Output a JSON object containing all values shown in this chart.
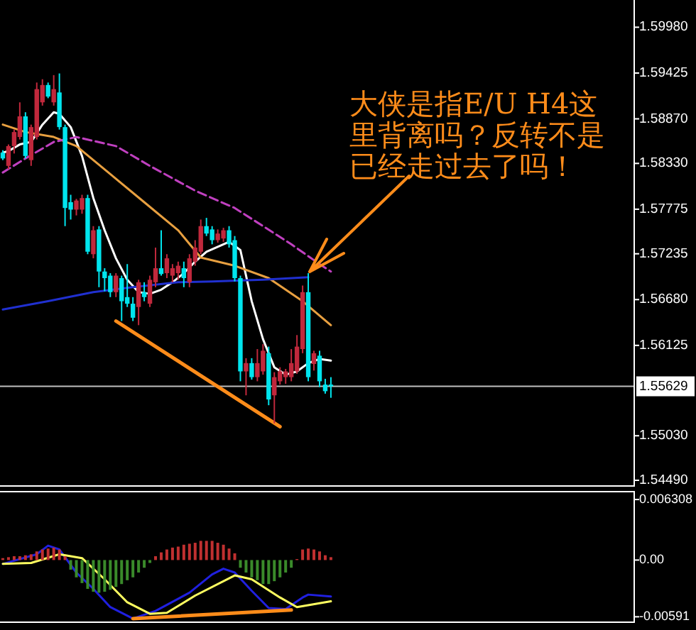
{
  "chart_data": [
    {
      "type": "candlestick",
      "categories": [
        null,
        null,
        null,
        null,
        null,
        null,
        null,
        null,
        null,
        null,
        null,
        null,
        null,
        null,
        null,
        null,
        null,
        null,
        null,
        null,
        null,
        null,
        null,
        null,
        null,
        null,
        null,
        null,
        null,
        null,
        null,
        null,
        null,
        null,
        null,
        null,
        null,
        null,
        null,
        null,
        null,
        null,
        null,
        null,
        null,
        null,
        null,
        null,
        null,
        null,
        null,
        null,
        null,
        null,
        null,
        null,
        null,
        null,
        null,
        null,
        null,
        null,
        null,
        null,
        null,
        null,
        null,
        null,
        null,
        null,
        null,
        null,
        null,
        null,
        null,
        null,
        null,
        null,
        null,
        null,
        null,
        null,
        null,
        null,
        null,
        null,
        null,
        null,
        null,
        null,
        null,
        null,
        null,
        null,
        null,
        null,
        null,
        null,
        null,
        null,
        null,
        null,
        null,
        null,
        null,
        null,
        null,
        null,
        null,
        null,
        null,
        null
      ],
      "ohlc": [
        [
          1.5846,
          1.5849,
          1.5837,
          1.5839
        ],
        [
          1.583,
          1.5856,
          1.5826,
          1.5854
        ],
        [
          1.5854,
          1.5874,
          1.5845,
          1.5871
        ],
        [
          1.5865,
          1.5907,
          1.5862,
          1.589
        ],
        [
          1.589,
          1.5895,
          1.5839,
          1.5842
        ],
        [
          1.5837,
          1.588,
          1.583,
          1.5877
        ],
        [
          1.5865,
          1.5931,
          1.5862,
          1.5923
        ],
        [
          1.5907,
          1.5935,
          1.5903,
          1.5928
        ],
        [
          1.5928,
          1.5931,
          1.5912,
          1.5914
        ],
        [
          1.5907,
          1.594,
          1.5903,
          1.5923
        ],
        [
          1.5919,
          1.5942,
          1.5874,
          1.5877
        ],
        [
          1.5877,
          1.588,
          1.5757,
          1.5779
        ],
        [
          1.5786,
          1.5795,
          1.5765,
          1.5777
        ],
        [
          1.5777,
          1.579,
          1.577,
          1.5788
        ],
        [
          1.5777,
          1.5795,
          1.5772,
          1.5791
        ],
        [
          1.5791,
          1.5795,
          1.5723,
          1.5726
        ],
        [
          1.5723,
          1.5757,
          1.5718,
          1.5752
        ],
        [
          1.5753,
          1.5757,
          1.5683,
          1.5702
        ],
        [
          1.5702,
          1.5706,
          1.5678,
          1.5694
        ],
        [
          1.5697,
          1.57,
          1.5671,
          1.5677
        ],
        [
          1.5677,
          1.57,
          1.5671,
          1.5697
        ],
        [
          1.5694,
          1.5697,
          1.5642,
          1.5666
        ],
        [
          1.5671,
          1.5711,
          1.5659,
          1.5663
        ],
        [
          1.5663,
          1.5671,
          1.5642,
          1.5646
        ],
        [
          1.5659,
          1.5692,
          1.5637,
          1.5689
        ],
        [
          1.5677,
          1.5689,
          1.5666,
          1.5671
        ],
        [
          1.5663,
          1.5697,
          1.5659,
          1.5692
        ],
        [
          1.5689,
          1.5731,
          1.5683,
          1.5706
        ],
        [
          1.5706,
          1.5752,
          1.5697,
          1.5699
        ],
        [
          1.57,
          1.5723,
          1.5694,
          1.5718
        ],
        [
          1.5697,
          1.5711,
          1.5689,
          1.5706
        ],
        [
          1.57,
          1.5714,
          1.5692,
          1.5709
        ],
        [
          1.5706,
          1.5714,
          1.5683,
          1.5694
        ],
        [
          1.5689,
          1.5723,
          1.5683,
          1.5718
        ],
        [
          1.5714,
          1.574,
          1.5709,
          1.5731
        ],
        [
          1.5726,
          1.5765,
          1.5723,
          1.5757
        ],
        [
          1.5757,
          1.5767,
          1.5745,
          1.5748
        ],
        [
          1.5753,
          1.5757,
          1.5735,
          1.574
        ],
        [
          1.574,
          1.5753,
          1.5737,
          1.5748
        ],
        [
          1.5742,
          1.5755,
          1.5738,
          1.5752
        ],
        [
          1.5752,
          1.5757,
          1.5731,
          1.5735
        ],
        [
          1.574,
          1.5745,
          1.569,
          1.5694
        ],
        [
          1.5694,
          1.5697,
          1.5569,
          1.5581
        ],
        [
          1.5581,
          1.5597,
          1.5552,
          1.5591
        ],
        [
          1.5591,
          1.5597,
          1.5571,
          1.5574
        ],
        [
          1.5574,
          1.5608,
          1.5569,
          1.5591
        ],
        [
          1.5581,
          1.5614,
          1.5577,
          1.5606
        ],
        [
          1.5603,
          1.5611,
          1.554,
          1.5547
        ],
        [
          1.5552,
          1.558,
          1.5518,
          1.5574
        ],
        [
          1.5569,
          1.5586,
          1.5565,
          1.5581
        ],
        [
          1.5574,
          1.5584,
          1.5566,
          1.5581
        ],
        [
          1.5574,
          1.5608,
          1.5569,
          1.5591
        ],
        [
          1.5581,
          1.5625,
          1.5578,
          1.5611
        ],
        [
          1.5608,
          1.5685,
          1.5603,
          1.5677
        ],
        [
          1.5677,
          1.57,
          1.5569,
          1.5574
        ],
        [
          1.559,
          1.5606,
          1.5582,
          1.5603
        ],
        [
          1.56,
          1.5606,
          1.5562,
          1.5569
        ],
        [
          1.5565,
          1.5572,
          1.5554,
          1.5557
        ],
        [
          1.5565,
          1.5574,
          1.5549,
          1.5563
        ],
        null,
        null,
        null,
        null,
        null,
        null,
        null,
        null,
        null,
        null,
        null,
        null,
        null,
        null,
        null,
        null,
        null,
        null,
        null,
        null,
        null,
        null,
        null,
        null,
        null,
        null,
        null,
        null,
        null,
        null,
        null,
        null,
        null,
        null,
        null,
        null,
        null,
        null,
        null,
        null,
        null,
        null,
        null,
        null,
        null,
        null,
        null,
        null,
        null,
        null,
        null,
        null,
        null
      ],
      "colors": [
        "#00e5ee",
        "#c0283c",
        "#c0283c",
        "#c0283c",
        "#00e5ee",
        "#c0283c",
        "#c0283c",
        "#c0283c",
        "#00e5ee",
        "#c0283c",
        "#00e5ee",
        "#00e5ee",
        "#00e5ee",
        "#c0283c",
        "#c0283c",
        "#00e5ee",
        "#c0283c",
        "#00e5ee",
        "#00e5ee",
        "#00e5ee",
        "#c0283c",
        "#00e5ee",
        "#00e5ee",
        "#00e5ee",
        "#c0283c",
        "#00e5ee",
        "#c0283c",
        "#c0283c",
        "#00e5ee",
        "#c0283c",
        "#c0283c",
        "#c0283c",
        "#00e5ee",
        "#c0283c",
        "#c0283c",
        "#c0283c",
        "#00e5ee",
        "#00e5ee",
        "#c0283c",
        "#c0283c",
        "#00e5ee",
        "#00e5ee",
        "#00e5ee",
        "#c0283c",
        "#00e5ee",
        "#c0283c",
        "#c0283c",
        "#00e5ee",
        "#c0283c",
        "#c0283c",
        "#c0283c",
        "#c0283c",
        "#c0283c",
        "#c0283c",
        "#00e5ee",
        "#c0283c",
        "#00e5ee",
        "#00e5ee",
        "#00e5ee",
        null,
        null,
        null,
        null,
        null,
        null,
        null,
        null,
        null,
        null,
        null,
        null,
        null,
        null,
        null,
        null,
        null,
        null,
        null,
        null,
        null,
        null,
        null,
        null,
        null,
        null,
        null,
        null,
        null,
        null,
        null,
        null,
        null,
        null,
        null,
        null,
        null,
        null,
        null,
        null,
        null,
        null,
        null,
        null,
        null,
        null,
        null,
        null,
        null,
        null,
        null,
        null,
        null
      ],
      "series": [
        {
          "type": "line",
          "color": "#ffffff",
          "values": [
            1.5846,
            1.5848,
            null,
            1.5856,
            null,
            1.5859,
            null,
            1.588,
            null,
            1.5895,
            1.5893,
            null,
            1.5877,
            null,
            1.5842,
            null,
            1.5791,
            null,
            1.5752,
            null,
            1.5718,
            null,
            1.5692,
            null,
            1.5677,
            null,
            1.5675,
            null,
            1.568,
            null,
            1.5689,
            null,
            1.57,
            null,
            1.5714,
            null,
            1.5726,
            null,
            null,
            null,
            1.5738,
            null,
            1.5728,
            null,
            1.5666,
            null,
            1.562,
            null,
            1.5586,
            null,
            1.5577,
            null,
            1.5581,
            null,
            1.5591,
            null,
            1.5596,
            null,
            1.5594,
            null,
            null,
            null,
            null,
            null,
            null,
            null,
            null,
            null,
            null,
            null,
            null,
            null,
            null,
            null,
            null,
            null,
            null,
            null,
            null,
            null,
            null,
            null,
            null,
            null,
            null,
            null,
            null,
            null,
            null,
            null,
            null,
            null,
            null,
            null,
            null,
            null,
            null,
            null,
            null,
            null,
            null,
            null,
            null,
            null,
            null,
            null,
            null,
            null,
            null,
            null,
            null,
            null
          ]
        },
        {
          "type": "line",
          "color": "#e8a040",
          "values": [
            1.588,
            null,
            null,
            null,
            1.5871,
            null,
            null,
            null,
            null,
            1.5865,
            null,
            null,
            null,
            1.5854,
            null,
            null,
            null,
            null,
            null,
            1.582,
            null,
            null,
            null,
            null,
            null,
            1.5786,
            null,
            null,
            null,
            null,
            null,
            1.5752,
            null,
            null,
            null,
            1.5719,
            null,
            null,
            null,
            null,
            null,
            1.5709,
            null,
            null,
            null,
            null,
            null,
            1.5694,
            null,
            null,
            null,
            null,
            null,
            1.5666,
            null,
            null,
            null,
            null,
            1.5637,
            null,
            null,
            null,
            null,
            null,
            null,
            null,
            null,
            null,
            null,
            null,
            null,
            null,
            null,
            null,
            null,
            null,
            null,
            null,
            null,
            null,
            null,
            null,
            null,
            null,
            null,
            null,
            null,
            null,
            null,
            null,
            null,
            null,
            null,
            null,
            null,
            null,
            null,
            null,
            null,
            null,
            null,
            null,
            null,
            null,
            null,
            null,
            null,
            null,
            null,
            null,
            null,
            null
          ]
        },
        {
          "type": "line",
          "color": "#c040c0",
          "line_style": "dashed",
          "values": [
            1.5822,
            null,
            null,
            null,
            1.5839,
            null,
            null,
            null,
            null,
            1.5859,
            null,
            null,
            null,
            1.5865,
            null,
            null,
            null,
            null,
            null,
            null,
            1.5854,
            null,
            null,
            null,
            null,
            null,
            1.583,
            null,
            null,
            null,
            null,
            null,
            null,
            null,
            1.58,
            null,
            null,
            null,
            null,
            null,
            null,
            1.5779,
            null,
            null,
            null,
            null,
            1.5757,
            null,
            null,
            null,
            null,
            1.5735,
            null,
            null,
            null,
            null,
            1.5711,
            null,
            1.5702,
            null,
            null,
            null,
            null,
            null,
            null,
            null,
            null,
            null,
            null,
            null,
            null,
            null,
            null,
            null,
            null,
            null,
            null,
            null,
            null,
            null,
            null,
            null,
            null,
            null,
            null,
            null,
            null,
            null,
            null,
            null,
            null,
            null,
            null,
            null,
            null,
            null,
            null,
            null,
            null,
            null,
            null,
            null,
            null,
            null,
            null,
            null,
            null,
            null,
            null,
            null,
            null,
            null
          ]
        },
        {
          "type": "line",
          "color": "#2030d0",
          "values": [
            1.5656,
            null,
            null,
            null,
            null,
            null,
            null,
            null,
            1.5666,
            null,
            null,
            null,
            null,
            null,
            null,
            null,
            1.5677,
            null,
            null,
            null,
            null,
            null,
            null,
            1.5683,
            null,
            null,
            null,
            null,
            null,
            null,
            null,
            1.5689,
            null,
            null,
            null,
            null,
            null,
            1.569,
            null,
            null,
            null,
            null,
            null,
            null,
            null,
            null,
            1.5692,
            null,
            null,
            null,
            null,
            null,
            null,
            null,
            1.5695,
            null,
            null,
            null,
            null,
            null,
            null,
            null,
            null,
            null,
            null,
            null,
            null,
            null,
            null,
            null,
            null,
            null,
            null,
            null,
            null,
            null,
            null,
            null,
            null,
            null,
            null,
            null,
            null,
            null,
            null,
            null,
            null,
            null,
            null,
            null,
            null,
            null,
            null,
            null,
            null,
            null,
            null,
            null,
            null,
            null,
            null,
            null,
            null,
            null,
            null,
            null,
            null,
            null,
            null,
            null,
            null,
            null
          ]
        },
        {
          "type": "line",
          "color": "#ff8c1a",
          "values": [
            null,
            null,
            null,
            null,
            null,
            null,
            null,
            null,
            null,
            null,
            null,
            null,
            null,
            null,
            null,
            null,
            null,
            null,
            null,
            null,
            1.5642,
            null,
            null,
            null,
            null,
            null,
            null,
            null,
            null,
            null,
            null,
            null,
            null,
            null,
            null,
            null,
            null,
            null,
            null,
            null,
            null,
            null,
            null,
            null,
            null,
            null,
            null,
            null,
            null,
            1.5514,
            null,
            null,
            null,
            null,
            null,
            null,
            null,
            null,
            null,
            null,
            null,
            null,
            null,
            null,
            null,
            null,
            null,
            null,
            null,
            null,
            null,
            null,
            null,
            null,
            null,
            null,
            null,
            null,
            null,
            null,
            null,
            null,
            null,
            null,
            null,
            null,
            null,
            null,
            null,
            null,
            null,
            null,
            null,
            null,
            null,
            null,
            null,
            null,
            null,
            null,
            null,
            null,
            null,
            null,
            null,
            null,
            null,
            null,
            null,
            null,
            null,
            null
          ]
        }
      ],
      "ylim": [
        1.5443,
        1.6031
      ],
      "yticks": [
        {
          "value": 1.5998,
          "label": "1.59980"
        },
        1.59425,
        {
          "value": 1.5887,
          "label": "1.58870"
        },
        {
          "value": 1.5833,
          "label": "1.58330"
        },
        1.57775,
        1.57235,
        {
          "value": 1.5668,
          "label": "1.56680"
        },
        1.56125,
        {
          "value": 1.5503,
          "label": "1.55030"
        },
        {
          "value": 1.5449,
          "label": "1.54490"
        }
      ],
      "ref_lines": [
        {
          "axis": "y",
          "value": 1.55629,
          "label": "1.55629",
          "color": "#c0c0c0"
        }
      ],
      "annotations": [
        "大侠是指E/U H4这里背离吗？反转不是已经走过去了吗！"
      ]
    },
    {
      "type": "bar",
      "categories": [
        null,
        null,
        null,
        null,
        null,
        null,
        null,
        null,
        null,
        null,
        null,
        null,
        null,
        null,
        null,
        null,
        null,
        null,
        null,
        null,
        null,
        null,
        null,
        null,
        null,
        null,
        null,
        null,
        null,
        null,
        null,
        null,
        null,
        null,
        null,
        null,
        null,
        null,
        null,
        null,
        null,
        null,
        null,
        null,
        null,
        null,
        null,
        null,
        null,
        null,
        null,
        null,
        null,
        null,
        null,
        null,
        null,
        null,
        null,
        null,
        null,
        null,
        null,
        null,
        null,
        null,
        null,
        null,
        null,
        null,
        null,
        null,
        null,
        null,
        null,
        null,
        null,
        null,
        null,
        null,
        null,
        null,
        null,
        null,
        null,
        null,
        null,
        null,
        null,
        null,
        null,
        null,
        null,
        null,
        null,
        null,
        null,
        null,
        null,
        null,
        null,
        null,
        null,
        null,
        null,
        null,
        null,
        null,
        null,
        null,
        null,
        null
      ],
      "series": [
        {
          "values": [
            0.0002,
            0.0003,
            0.0004,
            0.0004,
            0.0005,
            0.0006,
            0.0009,
            0.0011,
            0.0012,
            0.0013,
            0.0011,
            0.0004,
            -0.001,
            -0.0018,
            -0.0024,
            -0.003,
            -0.0033,
            -0.0034,
            -0.0033,
            -0.0031,
            -0.0028,
            -0.0025,
            -0.0021,
            -0.0018,
            -0.0013,
            -0.0008,
            -0.0003,
            0.0004,
            0.0008,
            0.0011,
            0.0013,
            0.0014,
            0.0016,
            0.0017,
            0.0018,
            0.002,
            0.002,
            0.002,
            0.0018,
            0.0016,
            0.0012,
            0.0007,
            -0.0008,
            -0.0013,
            -0.0018,
            -0.0021,
            -0.0025,
            -0.0025,
            -0.0022,
            -0.0018,
            -0.0013,
            -0.0008,
            0.0001,
            0.0011,
            0.0012,
            0.0011,
            0.0009,
            0.0005,
            0.0003,
            null,
            null,
            null,
            null,
            null,
            null,
            null,
            null,
            null,
            null,
            null,
            null,
            null,
            null,
            null,
            null,
            null,
            null,
            null,
            null,
            null,
            null,
            null,
            null,
            null,
            null,
            null,
            null,
            null,
            null,
            null,
            null,
            null,
            null,
            null,
            null,
            null,
            null,
            null,
            null,
            null,
            null,
            null,
            null,
            null,
            null,
            null,
            null,
            null,
            null,
            null,
            null,
            null
          ],
          "colors": [
            "#c03030",
            "#c03030",
            "#c03030",
            "#c03030",
            "#c03030",
            "#c03030",
            "#c03030",
            "#c03030",
            "#c03030",
            "#c03030",
            "#c03030",
            "#c03030",
            "#3a8a2a",
            "#3a8a2a",
            "#3a8a2a",
            "#3a8a2a",
            "#3a8a2a",
            "#3a8a2a",
            "#3a8a2a",
            "#3a8a2a",
            "#3a8a2a",
            "#3a8a2a",
            "#3a8a2a",
            "#3a8a2a",
            "#3a8a2a",
            "#3a8a2a",
            "#3a8a2a",
            "#c03030",
            "#c03030",
            "#c03030",
            "#c03030",
            "#c03030",
            "#c03030",
            "#c03030",
            "#c03030",
            "#c03030",
            "#c03030",
            "#c03030",
            "#c03030",
            "#c03030",
            "#c03030",
            "#c03030",
            "#3a8a2a",
            "#3a8a2a",
            "#3a8a2a",
            "#3a8a2a",
            "#3a8a2a",
            "#3a8a2a",
            "#3a8a2a",
            "#3a8a2a",
            "#3a8a2a",
            "#3a8a2a",
            "#c03030",
            "#c03030",
            "#c03030",
            "#c03030",
            "#c03030",
            "#c03030",
            "#c03030",
            null,
            null,
            null,
            null,
            null,
            null,
            null,
            null,
            null,
            null,
            null,
            null,
            null,
            null,
            null,
            null,
            null,
            null,
            null,
            null,
            null,
            null,
            null,
            null,
            null,
            null,
            null,
            null,
            null,
            null,
            null,
            null,
            null,
            null,
            null,
            null,
            null,
            null,
            null,
            null,
            null,
            null,
            null,
            null,
            null,
            null,
            null,
            null,
            null,
            null,
            null,
            null,
            null
          ]
        },
        {
          "type": "line",
          "color": "#2020e0",
          "values": [
            -0.0004,
            null,
            null,
            null,
            null,
            null,
            0.0006,
            null,
            0.0015,
            null,
            0.0011,
            null,
            null,
            -0.0013,
            null,
            null,
            -0.003,
            null,
            null,
            -0.0049,
            null,
            null,
            null,
            -0.0061,
            null,
            null,
            null,
            -0.0053,
            null,
            null,
            null,
            null,
            null,
            -0.0034,
            null,
            null,
            null,
            -0.0015,
            null,
            -0.0009,
            null,
            -0.0013,
            null,
            null,
            -0.0032,
            null,
            null,
            -0.005,
            null,
            null,
            -0.0051,
            null,
            null,
            -0.0039,
            -0.0036,
            null,
            null,
            null,
            -0.0038,
            null,
            null,
            null,
            null,
            null,
            null,
            null,
            null,
            null,
            null,
            null,
            null,
            null,
            null,
            null,
            null,
            null,
            null,
            null,
            null,
            null,
            null,
            null,
            null,
            null,
            null,
            null,
            null,
            null,
            null,
            null,
            null,
            null,
            null,
            null,
            null,
            null,
            null,
            null,
            null,
            null,
            null,
            null,
            null,
            null,
            null,
            null,
            null,
            null,
            null,
            null,
            null,
            null
          ]
        },
        {
          "type": "line",
          "color": "#ffff60",
          "values": [
            -0.0004,
            null,
            null,
            null,
            null,
            -0.0003,
            null,
            null,
            null,
            null,
            0.0006,
            null,
            null,
            null,
            0.0002,
            null,
            null,
            null,
            -0.002,
            null,
            null,
            null,
            -0.0044,
            null,
            null,
            null,
            -0.0056,
            null,
            null,
            -0.0055,
            null,
            null,
            null,
            null,
            -0.0037,
            null,
            null,
            null,
            null,
            null,
            null,
            -0.0016,
            null,
            null,
            -0.002,
            null,
            null,
            null,
            null,
            -0.0039,
            null,
            null,
            -0.0049,
            null,
            -0.0047,
            null,
            null,
            null,
            -0.0043,
            null,
            null,
            null,
            null,
            null,
            null,
            null,
            null,
            null,
            null,
            null,
            null,
            null,
            null,
            null,
            null,
            null,
            null,
            null,
            null,
            null,
            null,
            null,
            null,
            null,
            null,
            null,
            null,
            null,
            null,
            null,
            null,
            null,
            null,
            null,
            null,
            null,
            null,
            null,
            null,
            null,
            null,
            null,
            null,
            null,
            null,
            null,
            null,
            null,
            null,
            null,
            null,
            null
          ]
        },
        {
          "type": "line",
          "color": "#ff8c1a",
          "values": [
            null,
            null,
            null,
            null,
            null,
            null,
            null,
            null,
            null,
            null,
            null,
            null,
            null,
            null,
            null,
            null,
            null,
            null,
            null,
            null,
            null,
            null,
            null,
            -0.0061,
            null,
            null,
            null,
            null,
            null,
            null,
            null,
            null,
            null,
            null,
            null,
            null,
            null,
            null,
            null,
            null,
            null,
            null,
            null,
            null,
            null,
            null,
            null,
            null,
            null,
            null,
            null,
            -0.0052,
            null,
            null,
            null,
            null,
            null,
            null,
            null,
            null,
            null,
            null,
            null,
            null,
            null,
            null,
            null,
            null,
            null,
            null,
            null,
            null,
            null,
            null,
            null,
            null,
            null,
            null,
            null,
            null,
            null,
            null,
            null,
            null,
            null,
            null,
            null,
            null,
            null,
            null,
            null,
            null,
            null,
            null,
            null,
            null,
            null,
            null,
            null,
            null,
            null,
            null,
            null,
            null,
            null,
            null,
            null,
            null,
            null,
            null,
            null,
            null
          ]
        }
      ],
      "ylim": [
        -0.0064,
        0.0072
      ],
      "yticks": [
        {
          "value": 0.006308,
          "label": "0.006308"
        },
        {
          "value": 0,
          "label": "0.00"
        },
        {
          "value": -0.00591,
          "label": "-0.00591"
        }
      ]
    }
  ]
}
